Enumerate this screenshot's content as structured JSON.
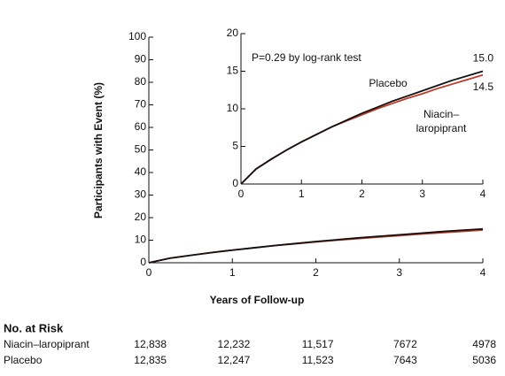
{
  "chart_data": {
    "type": "line",
    "xlabel": "Years of Follow-up",
    "ylabel": "Participants with Event (%)",
    "x": [
      0,
      0.25,
      0.5,
      0.75,
      1,
      1.25,
      1.5,
      1.75,
      2,
      2.25,
      2.5,
      2.75,
      3,
      3.25,
      3.5,
      3.75,
      4
    ],
    "xlim": [
      0,
      4
    ],
    "xticks": [
      0,
      1,
      2,
      3,
      4
    ],
    "ylim": [
      0,
      100
    ],
    "yticks": [
      0,
      10,
      20,
      30,
      40,
      50,
      60,
      70,
      80,
      90,
      100
    ],
    "series": [
      {
        "name": "Niacin–laropiprant",
        "color": "#c0392b",
        "values": [
          0,
          2.0,
          3.3,
          4.5,
          5.6,
          6.6,
          7.6,
          8.4,
          9.2,
          10.0,
          10.7,
          11.4,
          12.0,
          12.7,
          13.3,
          13.9,
          14.5
        ],
        "end_label": "14.5",
        "at_risk": {
          "values": [
            12838,
            12232,
            11517,
            7672,
            4978
          ],
          "value_labels": [
            "12,838",
            "12,232",
            "11,517",
            "7672",
            "4978"
          ]
        }
      },
      {
        "name": "Placebo",
        "color": "#111111",
        "values": [
          0,
          2.0,
          3.3,
          4.5,
          5.6,
          6.6,
          7.6,
          8.5,
          9.4,
          10.2,
          11.0,
          11.7,
          12.4,
          13.1,
          13.8,
          14.4,
          15.0
        ],
        "end_label": "15.0",
        "at_risk": {
          "values": [
            12835,
            12247,
            11523,
            7643,
            5036
          ],
          "value_labels": [
            "12,835",
            "12,247",
            "11,523",
            "7643",
            "5036"
          ]
        }
      }
    ],
    "inset": {
      "ylim": [
        0,
        20
      ],
      "yticks": [
        0,
        5,
        10,
        15,
        20
      ],
      "annotation": "P=0.29 by log-rank test"
    },
    "risk_title": "No. at Risk"
  }
}
